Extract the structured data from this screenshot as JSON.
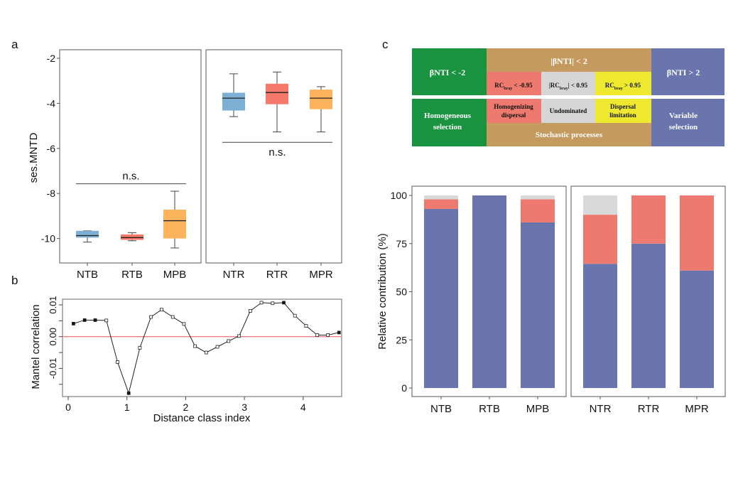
{
  "panel_labels": {
    "a": "a",
    "b": "b",
    "c": "c"
  },
  "chart_data": [
    {
      "type": "box",
      "panel": "a",
      "ylabel": "ses.MNTD",
      "ylim": [
        -11.1,
        -1.6
      ],
      "yticks": [
        -2,
        -4,
        -6,
        -8,
        -10
      ],
      "facets": [
        {
          "categories": [
            "NTB",
            "RTB",
            "MPB"
          ],
          "annotation": "n.s.",
          "annotation_line_y": -7.57,
          "boxes": [
            {
              "min": -10.16,
              "q1": -9.96,
              "median": -9.87,
              "q3": -9.66,
              "max": -9.66,
              "color": "#7bafd4"
            },
            {
              "min": -10.1,
              "q1": -10.06,
              "median": -9.96,
              "q3": -9.82,
              "max": -9.74,
              "color": "#f4796b"
            },
            {
              "min": -10.42,
              "q1": -10.0,
              "median": -9.21,
              "q3": -8.72,
              "max": -7.9,
              "color": "#fdb35c"
            }
          ]
        },
        {
          "categories": [
            "NTR",
            "RTR",
            "MPR"
          ],
          "annotation": "n.s.",
          "annotation_line_y": -5.73,
          "boxes": [
            {
              "min": -4.59,
              "q1": -4.32,
              "median": -3.77,
              "q3": -3.53,
              "max": -2.69,
              "color": "#7bafd4"
            },
            {
              "min": -5.27,
              "q1": -4.04,
              "median": -3.52,
              "q3": -3.13,
              "max": -2.61,
              "color": "#f4796b"
            },
            {
              "min": -5.27,
              "q1": -4.26,
              "median": -3.77,
              "q3": -3.39,
              "max": -3.26,
              "color": "#fdb35c"
            }
          ]
        }
      ]
    },
    {
      "type": "line",
      "panel": "b",
      "xlabel": "Distance class index",
      "ylabel": "Mantel correlation",
      "xlim": [
        -0.1,
        4.7
      ],
      "ylim": [
        -0.0189,
        0.0119
      ],
      "xticks": [
        0,
        1,
        2,
        3,
        4
      ],
      "yticks": [
        0.01,
        0.0,
        -0.01
      ],
      "ytick_labels": [
        "0.01",
        "0.00",
        "-0.01"
      ],
      "reference_line": {
        "y": 0,
        "color": "#f08080"
      },
      "points": [
        {
          "x": 0.09,
          "y": 0.0041,
          "significant": true
        },
        {
          "x": 0.28,
          "y": 0.0052,
          "significant": true
        },
        {
          "x": 0.46,
          "y": 0.0052,
          "significant": true
        },
        {
          "x": 0.65,
          "y": 0.0051,
          "significant": false
        },
        {
          "x": 0.84,
          "y": -0.008,
          "significant": false
        },
        {
          "x": 1.03,
          "y": -0.0178,
          "significant": true
        },
        {
          "x": 1.22,
          "y": -0.0035,
          "significant": false
        },
        {
          "x": 1.41,
          "y": 0.0062,
          "significant": false
        },
        {
          "x": 1.59,
          "y": 0.0085,
          "significant": false
        },
        {
          "x": 1.78,
          "y": 0.0062,
          "significant": false
        },
        {
          "x": 1.97,
          "y": 0.004,
          "significant": false
        },
        {
          "x": 2.16,
          "y": -0.003,
          "significant": false
        },
        {
          "x": 2.35,
          "y": -0.005,
          "significant": false
        },
        {
          "x": 2.54,
          "y": -0.0032,
          "significant": false
        },
        {
          "x": 2.73,
          "y": -0.0014,
          "significant": false
        },
        {
          "x": 2.91,
          "y": 0.0002,
          "significant": false
        },
        {
          "x": 3.1,
          "y": 0.0081,
          "significant": false
        },
        {
          "x": 3.29,
          "y": 0.0107,
          "significant": false
        },
        {
          "x": 3.48,
          "y": 0.0105,
          "significant": false
        },
        {
          "x": 3.67,
          "y": 0.0107,
          "significant": true
        },
        {
          "x": 3.86,
          "y": 0.0066,
          "significant": false
        },
        {
          "x": 4.05,
          "y": 0.0034,
          "significant": false
        },
        {
          "x": 4.24,
          "y": 0.0005,
          "significant": false
        },
        {
          "x": 4.42,
          "y": 0.0005,
          "significant": false
        },
        {
          "x": 4.61,
          "y": 0.0013,
          "significant": true
        }
      ]
    },
    {
      "type": "stacked-bar",
      "panel": "c",
      "ylabel": "Relative contribution (%)",
      "ylim": [
        0,
        100
      ],
      "yticks": [
        0,
        25,
        50,
        75,
        100
      ],
      "facets": [
        {
          "categories": [
            "NTB",
            "RTB",
            "MPB"
          ]
        },
        {
          "categories": [
            "NTR",
            "RTR",
            "MPR"
          ]
        }
      ],
      "series": [
        {
          "key": "variable_selection",
          "color": "#6a74ad",
          "values": [
            93,
            100,
            86,
            64.5,
            75,
            61
          ]
        },
        {
          "key": "homogenizing_dispersal",
          "color": "#ee7a6f",
          "values": [
            5,
            0,
            12,
            25.5,
            25,
            39
          ]
        },
        {
          "key": "undominated",
          "color": "#d9d9d9",
          "values": [
            2,
            0,
            2,
            10,
            0,
            0
          ]
        }
      ]
    }
  ],
  "scheme": {
    "colors": {
      "green": "#1a9340",
      "tan": "#c49a5f",
      "blue": "#6a74ad",
      "red": "#ee7a6f",
      "gray": "#d6d6d6",
      "yellow": "#eee82f"
    },
    "beta_low": "βNTI < -2",
    "beta_mid": "|βNTI| < 2",
    "beta_high": "βNTI > 2",
    "rc_low": {
      "main": "RC",
      "sub": "bray",
      "rest": " < -0.95"
    },
    "rc_mid": {
      "pre": "|RC",
      "sub": "bray",
      "rest": "| < 0.95"
    },
    "rc_high": {
      "main": "RC",
      "sub": "bray",
      "rest": " > 0.95"
    },
    "homogeneous": [
      "Homogeneous",
      "selection"
    ],
    "homogenizing": [
      "Homogenizing",
      "dispersal"
    ],
    "undominated": "Undominated",
    "dispersal_limitation": [
      "Dispersal",
      "limitation"
    ],
    "stochastic": "Stochastic processes",
    "variable": [
      "Variable",
      "selection"
    ]
  }
}
